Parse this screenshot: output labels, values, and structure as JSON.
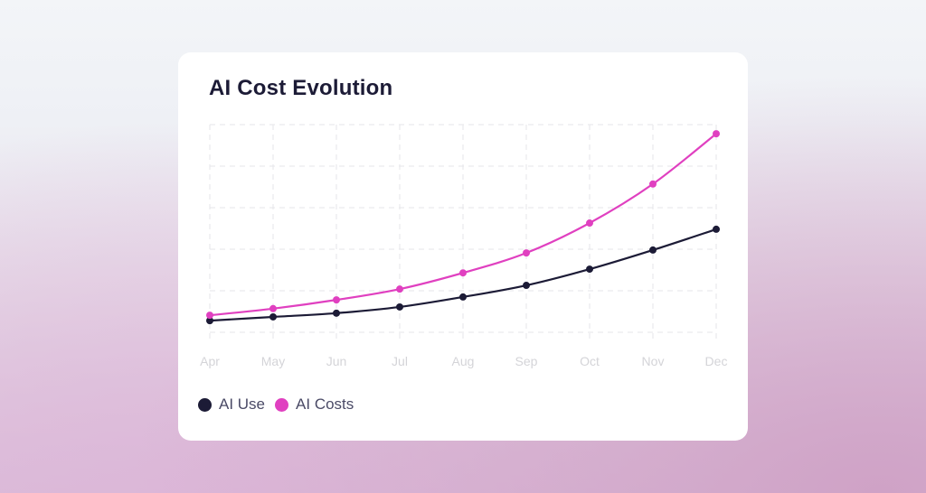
{
  "card": {
    "title": "AI Cost Evolution"
  },
  "colors": {
    "ai_use": "#1c1b36",
    "ai_costs": "#e040c0",
    "grid": "#e6e6ea",
    "axis_label": "#d4d4d8"
  },
  "legend": [
    {
      "label": "AI Use",
      "color": "#1c1b36",
      "icon": "dot-icon"
    },
    {
      "label": "AI Costs",
      "color": "#e040c0",
      "icon": "dot-icon"
    }
  ],
  "x_labels": [
    "Apr",
    "May",
    "Jun",
    "Jul",
    "Aug",
    "Sep",
    "Oct",
    "Nov",
    "Dec"
  ],
  "chart_data": {
    "type": "line",
    "title": "AI Cost Evolution",
    "xlabel": "",
    "ylabel": "",
    "categories": [
      "Apr",
      "May",
      "Jun",
      "Jul",
      "Aug",
      "Sep",
      "Oct",
      "Nov",
      "Dec"
    ],
    "series": [
      {
        "name": "AI Use",
        "color": "#1c1b36",
        "values": [
          0.28,
          0.37,
          0.46,
          0.61,
          0.85,
          1.13,
          1.52,
          1.98,
          2.48
        ]
      },
      {
        "name": "AI Costs",
        "color": "#e040c0",
        "values": [
          0.41,
          0.57,
          0.78,
          1.04,
          1.43,
          1.91,
          2.63,
          3.57,
          4.78
        ]
      }
    ],
    "ylim": [
      0,
      5
    ],
    "y_ticks_visible": false,
    "grid": true,
    "grid_style": "dashed",
    "legend_position": "bottom-left",
    "smooth": true,
    "markers": true
  }
}
